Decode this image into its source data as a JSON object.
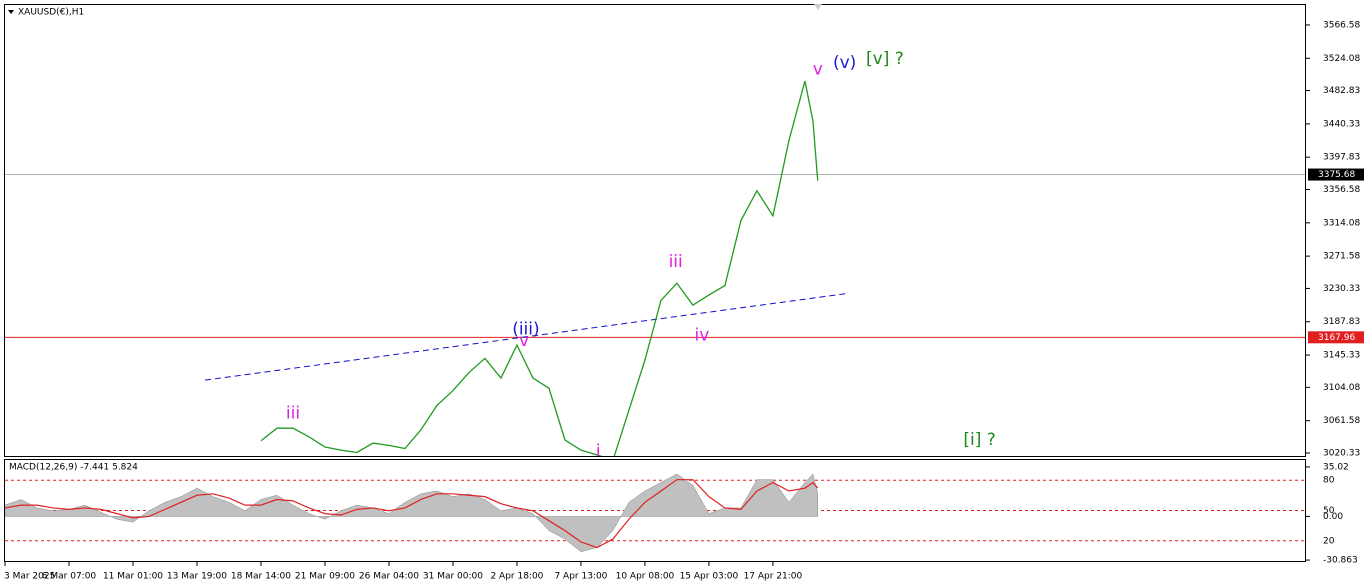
{
  "chart_data": [
    {
      "type": "line",
      "title": "XAUUSD(€),H1",
      "x": [
        4,
        4.25,
        4.5,
        4.75,
        5,
        5.25,
        5.5,
        5.75,
        6,
        6.25,
        6.5,
        6.75,
        7,
        7.25,
        7.5,
        7.75,
        8,
        8.25,
        8.5,
        8.75,
        9,
        9.25,
        9.5,
        9.75,
        10,
        10.25,
        10.5,
        10.75,
        11,
        11.25,
        11.5,
        11.75,
        12,
        12.25,
        12.5,
        12.625,
        12.7
      ],
      "series": [
        {
          "color": "#1f9a1f",
          "values": [
            3036,
            3052,
            3052,
            3041,
            3028,
            3024,
            3021,
            3033,
            3030,
            3026,
            3050,
            3081,
            3100,
            3123,
            3141,
            3116,
            3158,
            3116,
            3103,
            3037,
            3024,
            3018,
            3011,
            3075,
            3139,
            3215,
            3237,
            3209,
            3222,
            3234,
            3317,
            3355,
            3323,
            3419,
            3495,
            3444,
            3368
          ]
        }
      ],
      "ylim": [
        3016.5,
        3592.05
      ],
      "yticks": [
        3566.58,
        3524.08,
        3482.83,
        3440.33,
        3397.83,
        3356.58,
        3314.08,
        3271.58,
        3230.33,
        3187.83,
        3145.33,
        3104.08,
        3061.58,
        3020.33
      ],
      "xlim": [
        0,
        20.33
      ],
      "categories": [
        "3 Mar 2025",
        "6 Mar 07:00",
        "11 Mar 01:00",
        "13 Mar 19:00",
        "18 Mar 14:00",
        "21 Mar 09:00",
        "26 Mar 04:00",
        "31 Mar 00:00",
        "2 Apr 18:00",
        "7 Apr 13:00",
        "10 Apr 08:00",
        "15 Apr 03:00",
        "17 Apr 21:00"
      ],
      "hlines": [
        {
          "value": 3375.68,
          "label": "3375.68",
          "color": "#b0b0b0",
          "label_bg": "#000000"
        },
        {
          "value": 3167.96,
          "label": "3167.96",
          "color": "#e02020",
          "label_bg": "#e02020"
        }
      ],
      "trendline": {
        "x": [
          3.125,
          13.17
        ],
        "values": [
          3113.3,
          3224
        ],
        "color": "#1010c0"
      },
      "annotations": [
        {
          "text": "v",
          "x": 12.7,
          "y": 3510,
          "color": "#e020e0"
        },
        {
          "text": "(v)",
          "x": 13.12,
          "y": 3518,
          "color": "#1a1ad0"
        },
        {
          "text": "[v] ?",
          "x": 13.75,
          "y": 3523,
          "color": "#1a8a1a"
        },
        {
          "text": "(iii)",
          "x": 8.14,
          "y": 3178,
          "color": "#1a1ad0"
        },
        {
          "text": "v",
          "x": 8.11,
          "y": 3163,
          "color": "#e020e0"
        },
        {
          "text": "iii",
          "x": 10.48,
          "y": 3264,
          "color": "#e020e0"
        },
        {
          "text": "iv",
          "x": 10.89,
          "y": 3170,
          "color": "#e020e0"
        },
        {
          "text": "iii",
          "x": 4.5,
          "y": 3071,
          "color": "#e020e0"
        },
        {
          "text": "i",
          "x": 9.27,
          "y": 3022,
          "color": "#e020e0"
        },
        {
          "text": "[i] ?",
          "x": 15.23,
          "y": 3037,
          "color": "#1a8a1a"
        }
      ]
    },
    {
      "type": "macd",
      "title": "MACD(12,26,9) -7.441 5.824",
      "x": [
        0,
        0.25,
        0.5,
        0.75,
        1,
        1.25,
        1.5,
        1.75,
        2,
        2.25,
        2.5,
        2.75,
        3,
        3.25,
        3.5,
        3.75,
        4,
        4.25,
        4.5,
        4.75,
        5,
        5.25,
        5.5,
        5.75,
        6,
        6.25,
        6.5,
        6.75,
        7,
        7.25,
        7.5,
        7.75,
        8,
        8.25,
        8.5,
        8.75,
        9,
        9.25,
        9.5,
        9.75,
        10,
        10.25,
        10.5,
        10.75,
        11,
        11.25,
        11.5,
        11.75,
        12,
        12.25,
        12.5,
        12.625,
        12.7
      ],
      "series": [
        {
          "name": "MACD",
          "color": "#c0c0c0",
          "values": [
            8,
            12,
            6,
            4,
            5,
            8,
            3,
            -2,
            -4,
            4,
            10,
            14,
            20,
            14,
            10,
            4,
            12,
            15,
            8,
            2,
            -2,
            4,
            8,
            6,
            2,
            10,
            16,
            18,
            14,
            16,
            12,
            4,
            6,
            2,
            -10,
            -16,
            -25,
            -22,
            -10,
            10,
            18,
            24,
            30,
            22,
            2,
            6,
            6,
            26,
            26,
            10,
            24,
            30,
            16
          ]
        },
        {
          "name": "Signal",
          "color": "#e02020",
          "values": [
            6,
            8,
            8,
            6,
            5,
            6,
            5,
            2,
            -1,
            0,
            5,
            10,
            15,
            16,
            13,
            8,
            8,
            12,
            11,
            6,
            2,
            1,
            5,
            6,
            4,
            6,
            12,
            16,
            16,
            15,
            14,
            9,
            6,
            4,
            -3,
            -10,
            -18,
            -22,
            -16,
            -2,
            10,
            18,
            26,
            26,
            14,
            6,
            5,
            18,
            24,
            18,
            20,
            24,
            20
          ]
        }
      ],
      "ylim": [
        -31.52,
        39.92
      ],
      "yticks": [
        35.02,
        {
          "value": 0,
          "label": "0.00"
        },
        -30.863
      ],
      "levels_ylim": [
        0,
        100
      ],
      "levels": [
        80,
        50,
        20
      ],
      "xlim": [
        0,
        20.33
      ]
    }
  ]
}
